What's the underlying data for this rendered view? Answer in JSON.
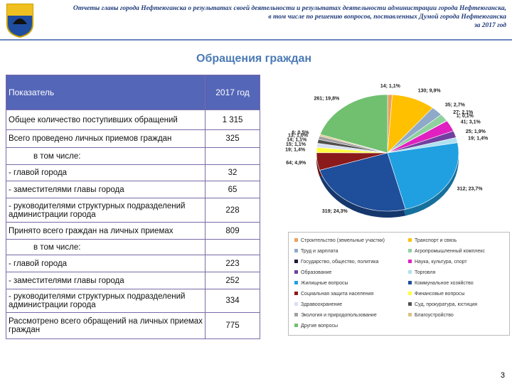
{
  "header": {
    "lines": [
      "Отчеты главы города Нефтеюганска о результатах своей деятельности и результатах деятельности администрации города Нефтеюганска,",
      "в том числе по решению вопросов, поставленных Думой города Нефтеюганска",
      "за 2017 год"
    ],
    "title": "Обращения граждан"
  },
  "table": {
    "columns": [
      "Показатель",
      "2017 год"
    ],
    "rows": [
      [
        "Общее количество поступивших обращений",
        "1 315"
      ],
      [
        "Всего проведено личных приемов граждан",
        "325"
      ],
      [
        "в том числе:"
      ],
      [
        "- главой города",
        "32"
      ],
      [
        "- заместителями главы города",
        "65"
      ],
      [
        "- руководителями структурных подразделений администрации города",
        "228"
      ],
      [
        "Принято всего граждан на личных приемах",
        "809"
      ],
      [
        "в том числе:"
      ],
      [
        "- главой города",
        "223"
      ],
      [
        "- заместителями главы города",
        "252"
      ],
      [
        "- руководителями структурных подразделений администрации города",
        "334"
      ],
      [
        "Рассмотрено всего обращений на личных приемах граждан",
        "775"
      ]
    ]
  },
  "chart_data": {
    "type": "pie",
    "categories": [
      "Строительство (земельные участки)",
      "Транспорт и связь",
      "Труд и зарплата",
      "Агропромышленный комплекс",
      "Государство, общество, политика",
      "Наука, культура, спорт",
      "Образование",
      "Торговля",
      "Жилищные вопросы",
      "Коммунальное хозяйство",
      "Социальная защита населения",
      "Финансовые вопросы",
      "Здравоохранение",
      "Суд, прокуратура, юстиция",
      "Экология и природопользование",
      "Благоустройство",
      "Другие вопросы"
    ],
    "values": [
      14,
      130,
      35,
      27,
      1,
      41,
      25,
      19,
      312,
      319,
      64,
      19,
      15,
      14,
      13,
      6,
      261
    ],
    "value_labels": [
      "14; 1,1%",
      "130; 9,9%",
      "35; 2,7%",
      "27; 2,1%",
      "1; 0,1%",
      "41; 3,1%",
      "25; 1,9%",
      "19; 1,4%",
      "312; 23,7%",
      "319; 24,3%",
      "64; 4,9%",
      "19; 1,4%",
      "15; 1,1%",
      "14; 1,1%",
      "13; 1,0%",
      "6; 0,5%",
      "261; 19,8%"
    ],
    "colors": [
      "#e8a060",
      "#ffc000",
      "#8fa9c8",
      "#8fd19e",
      "#1a1a3a",
      "#e020c0",
      "#7040a0",
      "#b0e0f0",
      "#20a0e0",
      "#1f4e9a",
      "#8b1a1a",
      "#ffff40",
      "#d8e0f0",
      "#505050",
      "#a0a0a0",
      "#e0c080",
      "#70c070"
    ],
    "legend": "bottom"
  },
  "page_number": "3"
}
